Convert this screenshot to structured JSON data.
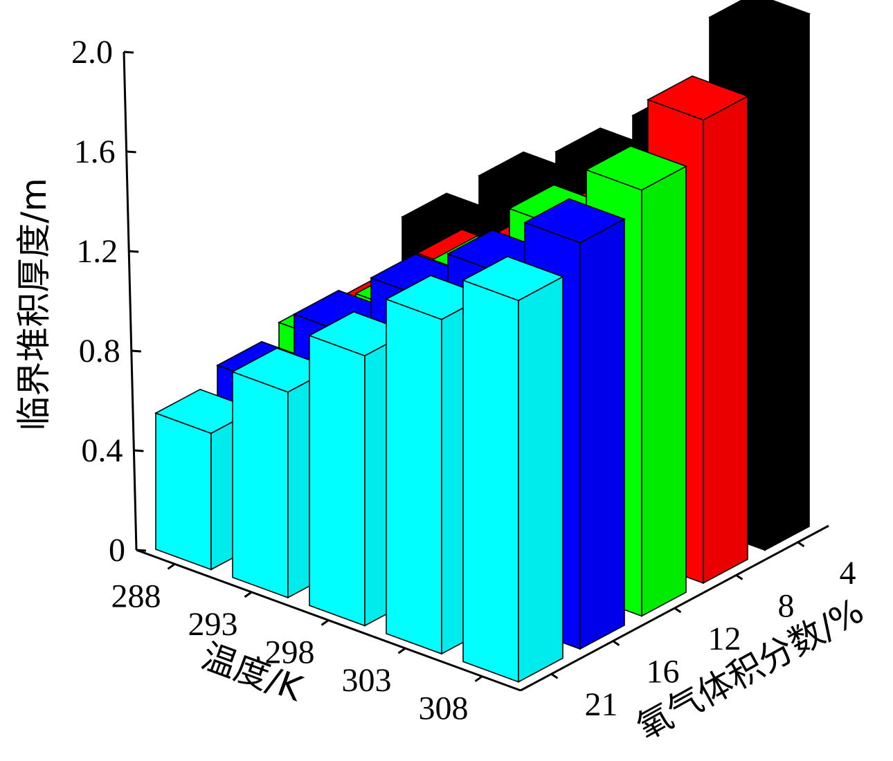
{
  "chart_data": {
    "type": "bar3d",
    "x_axis": {
      "label": "温度/K",
      "categories": [
        "288",
        "293",
        "298",
        "303",
        "308"
      ]
    },
    "y_axis": {
      "label": "氧气体积分数/%",
      "categories": [
        "21",
        "16",
        "12",
        "8",
        "4"
      ]
    },
    "z_axis": {
      "label": "临界堆积厚度/m",
      "ticks": [
        "0",
        "0.4",
        "0.8",
        "1.2",
        "1.6",
        "2.0"
      ],
      "range": [
        0,
        2.0
      ]
    },
    "series": [
      {
        "oxygen": "4",
        "color": "#000000",
        "values": [
          0.81,
          1.09,
          1.3,
          1.56,
          2.07
        ]
      },
      {
        "oxygen": "8",
        "color": "#ff0000",
        "values": [
          0.62,
          0.91,
          1.1,
          1.35,
          1.87
        ]
      },
      {
        "oxygen": "12",
        "color": "#00ff00",
        "values": [
          0.65,
          0.88,
          1.13,
          1.45,
          1.72
        ]
      },
      {
        "oxygen": "16",
        "color": "#0000ff",
        "values": [
          0.61,
          0.93,
          1.19,
          1.4,
          1.64
        ]
      },
      {
        "oxygen": "21",
        "color": "#00ffff",
        "values": [
          0.55,
          0.83,
          1.09,
          1.35,
          1.54
        ]
      }
    ]
  }
}
